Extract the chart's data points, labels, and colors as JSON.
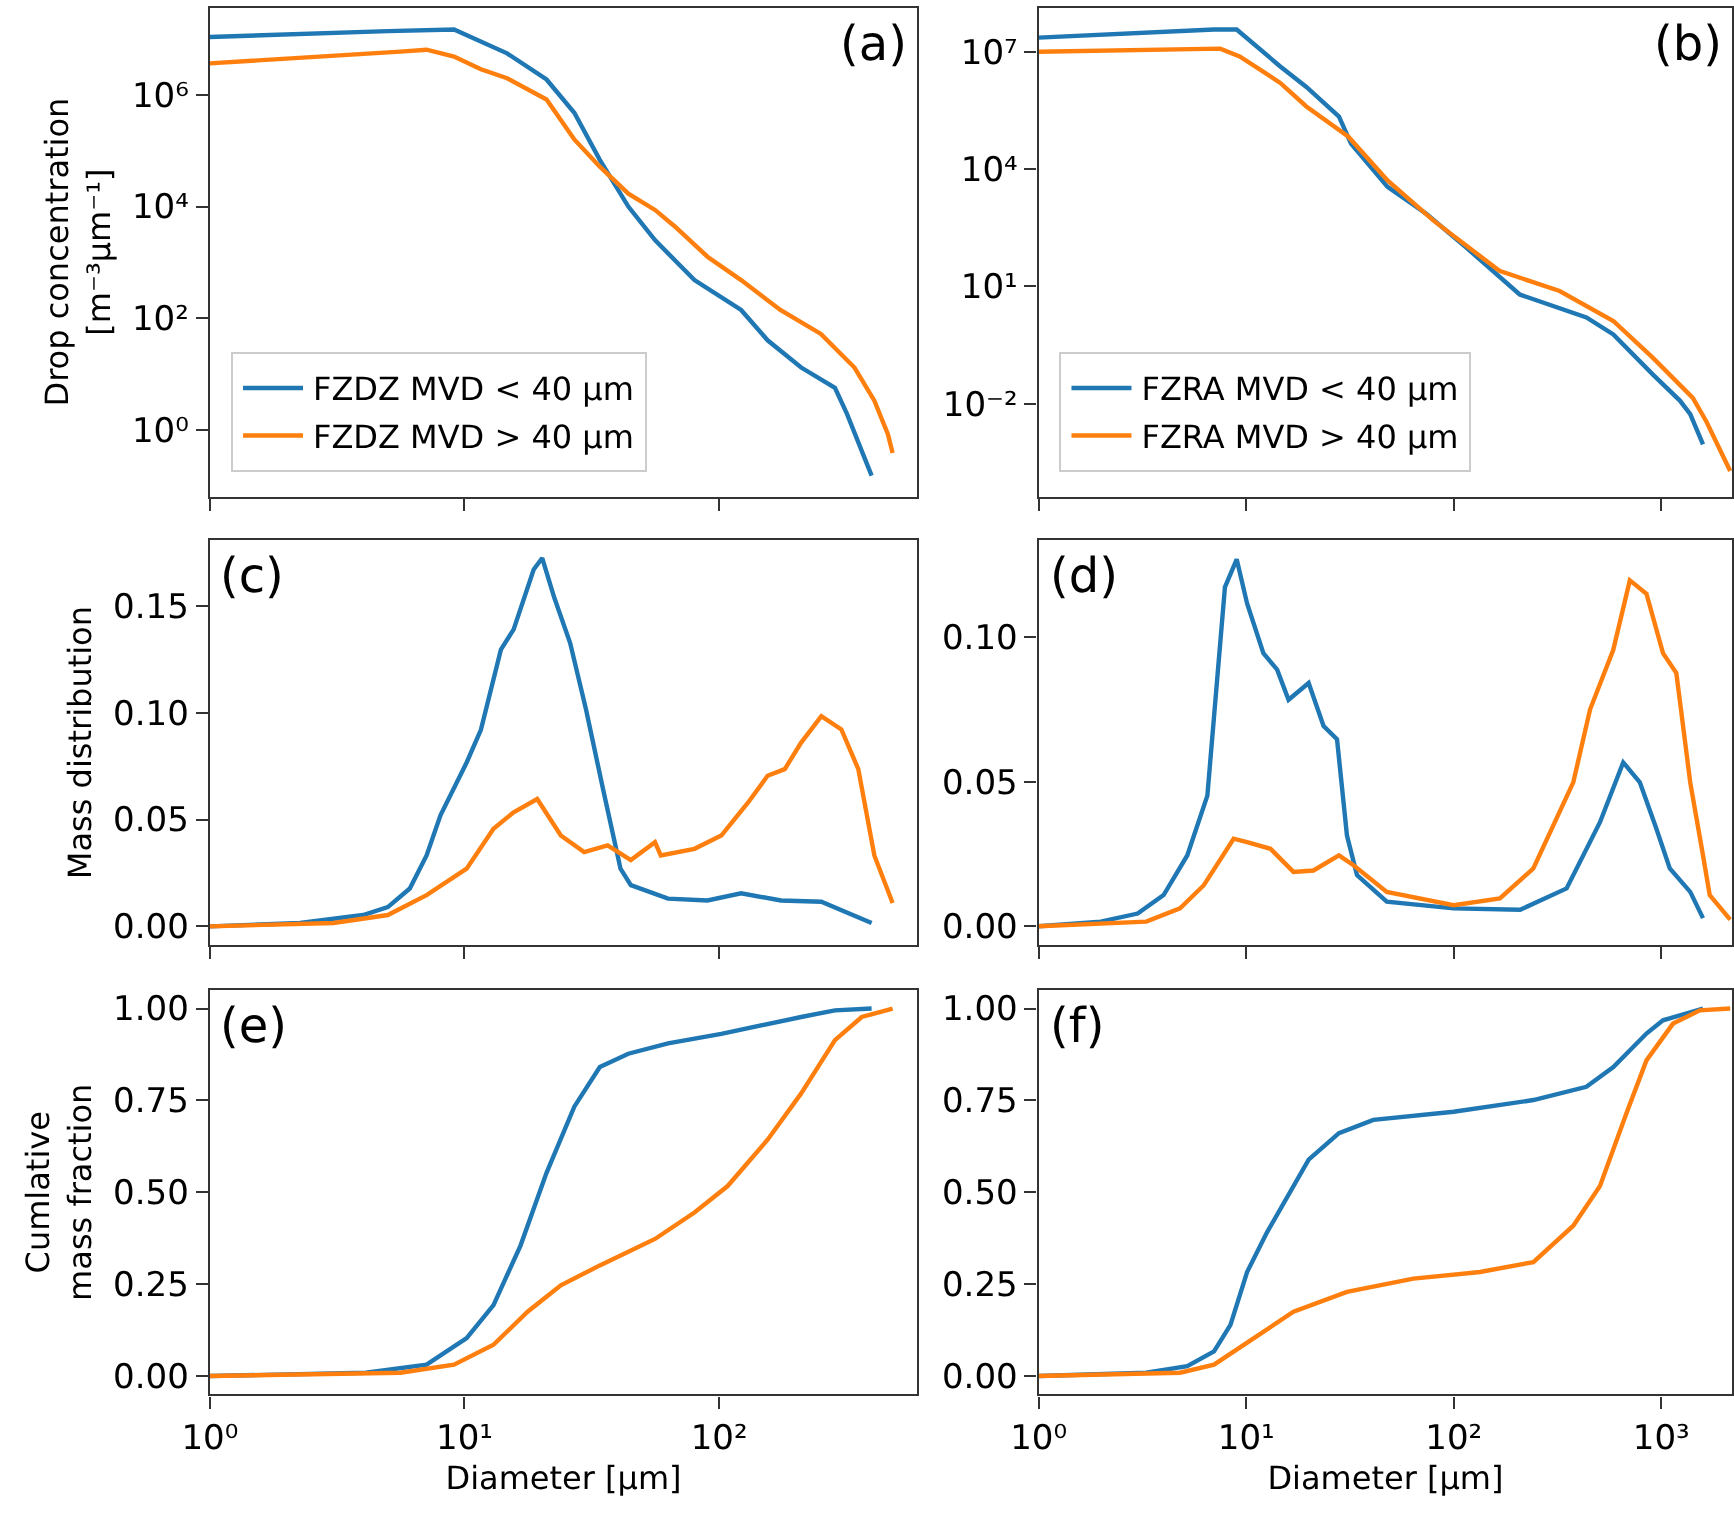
{
  "chart_data": [
    {
      "type": "line",
      "ylabel": "Drop concentration\n[m⁻³µm⁻¹]",
      "annotations": [
        "(a)"
      ],
      "log": "xy",
      "grid": false,
      "legend": "bottom left",
      "tick_labels": "y",
      "xlim": [
        1,
        600
      ],
      "xticks": [
        {
          "value": 1,
          "label": null
        },
        {
          "value": 10,
          "label": null
        },
        {
          "value": 100,
          "label": null
        }
      ],
      "ylim": [
        0.063,
        37000000
      ],
      "yticks": [
        {
          "value": 1,
          "label": "10⁰"
        },
        {
          "value": 100,
          "label": "10²"
        },
        {
          "value": 10000,
          "label": "10⁴"
        },
        {
          "value": 1000000,
          "label": "10⁶"
        }
      ],
      "series": [
        {
          "name": "FZDZ MVD < 40 µm",
          "color": "#1f77b4",
          "x": [
            1,
            5,
            9.1,
            14.7,
            21,
            27,
            34,
            44,
            56,
            80,
            122,
            155,
            210,
            285,
            318,
            397
          ],
          "values": [
            11000000,
            14000000,
            15000000,
            5600000,
            1900000,
            480000,
            69000,
            10000,
            2500,
            480,
            140,
            40,
            13,
            5.6,
            1.9,
            0.15
          ]
        },
        {
          "name": "FZDZ MVD > 40 µm",
          "color": "#ff7f0e",
          "x": [
            1,
            5.6,
            7.1,
            9.1,
            11.6,
            14.7,
            21,
            27,
            34,
            44,
            56,
            67,
            90,
            122,
            174,
            251,
            340,
            407,
            460,
            480
          ],
          "values": [
            3700000,
            6000000,
            6500000,
            4900000,
            2900000,
            2000000,
            830000,
            160000,
            52000,
            17000,
            8700,
            4400,
            1260,
            480,
            140,
            52,
            13,
            3.3,
            0.83,
            0.38
          ]
        }
      ]
    },
    {
      "type": "line",
      "annotations": [
        "(b)"
      ],
      "log": "xy",
      "grid": false,
      "legend": "bottom left",
      "tick_labels": "y",
      "xlim": [
        1,
        2200
      ],
      "xticks": [
        {
          "value": 1,
          "label": null
        },
        {
          "value": 10,
          "label": null
        },
        {
          "value": 100,
          "label": null
        },
        {
          "value": 1000,
          "label": null
        }
      ],
      "ylim": [
        4.2e-05,
        135000000
      ],
      "yticks": [
        {
          "value": 0.01,
          "label": "10⁻²"
        },
        {
          "value": 10,
          "label": "10¹"
        },
        {
          "value": 10000,
          "label": "10⁴"
        },
        {
          "value": 10000000,
          "label": "10⁷"
        }
      ],
      "series": [
        {
          "name": "FZRA MVD < 40 µm",
          "color": "#1f77b4",
          "x": [
            1,
            7,
            9,
            14.6,
            19.5,
            28,
            32,
            48,
            74,
            115,
            208,
            436,
            588,
            910,
            1230,
            1380,
            1590
          ],
          "values": [
            23000000,
            37000000,
            37000000,
            4200000,
            1260000,
            220000,
            45000,
            3500,
            710,
            98,
            6.2,
            1.6,
            0.59,
            0.056,
            0.012,
            0.0054,
            0.00091
          ]
        },
        {
          "name": "FZRA MVD > 40 µm",
          "color": "#ff7f0e",
          "x": [
            1,
            7.5,
            9.3,
            14.6,
            19.5,
            31,
            48,
            80,
            166,
            324,
            588,
            910,
            1420,
            1650,
            2150
          ],
          "values": [
            10000000,
            12000000,
            7600000,
            1600000,
            400000,
            68000,
            5100,
            480,
            25,
            7.6,
            1.3,
            0.15,
            0.014,
            0.0035,
            0.00019
          ]
        }
      ]
    },
    {
      "type": "line",
      "ylabel": "Mass distribution",
      "annotations": [
        "(c)"
      ],
      "log": "x",
      "grid": false,
      "tick_labels": "y",
      "xlim": [
        1,
        600
      ],
      "xticks": [
        {
          "value": 1,
          "label": null
        },
        {
          "value": 10,
          "label": null
        },
        {
          "value": 100,
          "label": null
        }
      ],
      "ylim": [
        -0.0086,
        0.1806
      ],
      "yticks": [
        {
          "value": 0,
          "label": "0.00"
        },
        {
          "value": 0.05,
          "label": "0.05"
        },
        {
          "value": 0.1,
          "label": "0.10"
        },
        {
          "value": 0.15,
          "label": "0.15"
        }
      ],
      "series": [
        {
          "color": "#1f77b4",
          "x": [
            1,
            2.26,
            4,
            5,
            6.1,
            7.1,
            8.05,
            10.2,
            11.6,
            13.9,
            15.6,
            18.7,
            20.2,
            22.5,
            26,
            30,
            35,
            41,
            45,
            63,
            90,
            122,
            175,
            252,
            397
          ],
          "values": [
            0,
            0.0016,
            0.0053,
            0.009,
            0.0177,
            0.0332,
            0.052,
            0.0767,
            0.092,
            0.1295,
            0.139,
            0.167,
            0.1724,
            0.154,
            0.1326,
            0.1016,
            0.0643,
            0.027,
            0.0193,
            0.013,
            0.0121,
            0.0155,
            0.0121,
            0.0115,
            0.0016
          ]
        },
        {
          "color": "#ff7f0e",
          "x": [
            1,
            3.06,
            5,
            7.1,
            10.2,
            13,
            15.6,
            19.3,
            23.9,
            29.5,
            36.5,
            45,
            56,
            59,
            80,
            102,
            130,
            155,
            181,
            210,
            252,
            302,
            352,
            407,
            480
          ],
          "values": [
            0,
            0.0016,
            0.0053,
            0.0146,
            0.027,
            0.0457,
            0.0534,
            0.0596,
            0.0425,
            0.0348,
            0.0379,
            0.031,
            0.0394,
            0.0332,
            0.0363,
            0.0425,
            0.058,
            0.0705,
            0.0736,
            0.086,
            0.0984,
            0.0922,
            0.0736,
            0.0332,
            0.0109
          ]
        }
      ]
    },
    {
      "type": "line",
      "annotations": [
        "(d)"
      ],
      "log": "x",
      "grid": false,
      "tick_labels": "y",
      "xlim": [
        1,
        2200
      ],
      "xticks": [
        {
          "value": 1,
          "label": null
        },
        {
          "value": 10,
          "label": null
        },
        {
          "value": 100,
          "label": null
        },
        {
          "value": 1000,
          "label": null
        }
      ],
      "ylim": [
        -0.0064,
        0.1335
      ],
      "yticks": [
        {
          "value": 0,
          "label": "0.00"
        },
        {
          "value": 0.05,
          "label": "0.05"
        },
        {
          "value": 0.1,
          "label": "0.10"
        }
      ],
      "series": [
        {
          "color": "#1f77b4",
          "x": [
            1,
            1.99,
            3,
            4,
            5.2,
            6.5,
            7.9,
            9,
            10.1,
            12.1,
            14.1,
            16,
            20,
            23.6,
            27.4,
            30.6,
            34.2,
            47.6,
            100,
            209,
            350,
            507,
            656,
            789,
            948,
            1100,
            1380,
            1590
          ],
          "values": [
            0,
            0.0016,
            0.0044,
            0.0108,
            0.0245,
            0.0452,
            0.1174,
            0.127,
            0.1117,
            0.0945,
            0.0888,
            0.0784,
            0.0842,
            0.0693,
            0.0647,
            0.0314,
            0.0177,
            0.0085,
            0.0062,
            0.0057,
            0.0131,
            0.036,
            0.0567,
            0.0498,
            0.0337,
            0.02,
            0.0119,
            0.0028
          ]
        },
        {
          "color": "#ff7f0e",
          "x": [
            1,
            3.3,
            4.8,
            6.25,
            8.7,
            10.1,
            13.1,
            16.9,
            21.1,
            28,
            32.9,
            47.6,
            100,
            167,
            242,
            377,
            454,
            587,
            706,
            849,
            1020,
            1183,
            1380,
            1590,
            1713,
            2150
          ],
          "values": [
            0,
            0.0016,
            0.0062,
            0.0142,
            0.0303,
            0.0291,
            0.0268,
            0.0188,
            0.0193,
            0.0245,
            0.0211,
            0.0119,
            0.0073,
            0.0096,
            0.02,
            0.0498,
            0.075,
            0.0956,
            0.1197,
            0.1151,
            0.0945,
            0.0876,
            0.0498,
            0.0245,
            0.0108,
            0.0023
          ]
        }
      ]
    },
    {
      "type": "line",
      "ylabel": "Cumlative\nmass fraction",
      "xlabel": "Diameter [µm]",
      "annotations": [
        "(e)"
      ],
      "log": "x",
      "grid": false,
      "xlim": [
        1,
        600
      ],
      "xticks": [
        {
          "value": 1,
          "label": "10⁰"
        },
        {
          "value": 10,
          "label": "10¹"
        },
        {
          "value": 100,
          "label": "10²"
        }
      ],
      "ylim": [
        -0.05,
        1.05
      ],
      "yticks": [
        {
          "value": 0,
          "label": "0.00"
        },
        {
          "value": 0.25,
          "label": "0.25"
        },
        {
          "value": 0.5,
          "label": "0.50"
        },
        {
          "value": 0.75,
          "label": "0.75"
        },
        {
          "value": 1,
          "label": "1.00"
        }
      ],
      "series": [
        {
          "color": "#1f77b4",
          "x": [
            1,
            4.1,
            7.1,
            10.2,
            13,
            16.6,
            21,
            27,
            34,
            44,
            63,
            102,
            210,
            285,
            397
          ],
          "values": [
            0,
            0.009,
            0.031,
            0.103,
            0.193,
            0.355,
            0.553,
            0.733,
            0.841,
            0.877,
            0.905,
            0.931,
            0.977,
            0.995,
            1.0
          ]
        },
        {
          "color": "#ff7f0e",
          "x": [
            1,
            5.6,
            9.1,
            13,
            17.7,
            23.9,
            34,
            56,
            80,
            108,
            155,
            210,
            285,
            363,
            480
          ],
          "values": [
            0,
            0.009,
            0.031,
            0.085,
            0.175,
            0.247,
            0.301,
            0.373,
            0.445,
            0.517,
            0.643,
            0.769,
            0.914,
            0.977,
            1.0
          ]
        }
      ]
    },
    {
      "type": "line",
      "xlabel": "Diameter [µm]",
      "annotations": [
        "(f)"
      ],
      "log": "x",
      "grid": false,
      "xlim": [
        1,
        2200
      ],
      "xticks": [
        {
          "value": 1,
          "label": "10⁰"
        },
        {
          "value": 10,
          "label": "10¹"
        },
        {
          "value": 100,
          "label": "10²"
        },
        {
          "value": 1000,
          "label": "10³"
        }
      ],
      "ylim": [
        -0.05,
        1.05
      ],
      "yticks": [
        {
          "value": 0,
          "label": "0.00"
        },
        {
          "value": 0.25,
          "label": "0.25"
        },
        {
          "value": 0.5,
          "label": "0.50"
        },
        {
          "value": 0.75,
          "label": "0.75"
        },
        {
          "value": 1,
          "label": "1.00"
        }
      ],
      "series": [
        {
          "color": "#1f77b4",
          "x": [
            1,
            3.3,
            5.2,
            7,
            8.4,
            10.1,
            12.6,
            20,
            28,
            41,
            100,
            242,
            436,
            588,
            849,
            1020,
            1590
          ],
          "values": [
            0,
            0.009,
            0.027,
            0.067,
            0.139,
            0.283,
            0.391,
            0.589,
            0.661,
            0.697,
            0.719,
            0.751,
            0.787,
            0.841,
            0.932,
            0.968,
            1.0
          ]
        },
        {
          "color": "#ff7f0e",
          "x": [
            1,
            4.8,
            7,
            10.9,
            16.9,
            30.6,
            64,
            134,
            242,
            377,
            507,
            680,
            849,
            1140,
            1535,
            2150
          ],
          "values": [
            0,
            0.009,
            0.031,
            0.103,
            0.175,
            0.229,
            0.265,
            0.283,
            0.31,
            0.409,
            0.517,
            0.715,
            0.859,
            0.959,
            0.995,
            1.0
          ]
        }
      ]
    }
  ]
}
